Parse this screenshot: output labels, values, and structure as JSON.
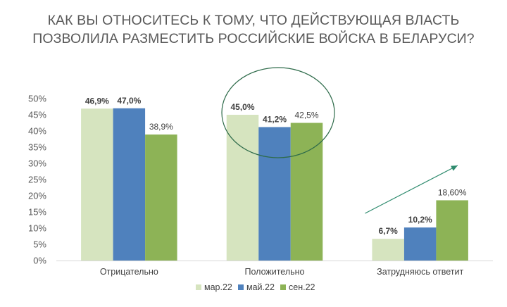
{
  "chart_data": {
    "type": "bar",
    "title_lines": [
      "КАК ВЫ ОТНОСИТЕСЬ К ТОМУ, ЧТО ДЕЙСТВУЮЩАЯ ВЛАСТЬ",
      "ПОЗВОЛИЛА РАЗМЕСТИТЬ РОССИЙСКИЕ ВОЙСКА В БЕЛАРУСИ?"
    ],
    "categories": [
      "Отрицательно",
      "Положительно",
      "Затрудняюсь ответит"
    ],
    "series": [
      {
        "name": "мар.22",
        "color": "#d6e4bf",
        "values": [
          46.9,
          45.0,
          6.7
        ],
        "labels": [
          "46,9%",
          "45,0%",
          "6,7%"
        ],
        "bold_labels": true
      },
      {
        "name": "май.22",
        "color": "#4f81bd",
        "values": [
          47.0,
          41.2,
          10.2
        ],
        "labels": [
          "47,0%",
          "41,2%",
          "10,2%"
        ],
        "bold_labels": true
      },
      {
        "name": "сен.22",
        "color": "#8db356",
        "values": [
          38.9,
          42.5,
          18.6
        ],
        "labels": [
          "38,9%",
          "42,5%",
          "18,60%"
        ],
        "bold_labels": false
      }
    ],
    "y_ticks": [
      "0%",
      "5%",
      "10%",
      "15%",
      "20%",
      "25%",
      "30%",
      "35%",
      "40%",
      "45%",
      "50%"
    ],
    "ylim": [
      0,
      50
    ],
    "grid": false,
    "legend_position": "bottom",
    "annotations": [
      {
        "type": "ellipse",
        "around": "Положительно",
        "color": "#2e6b4a"
      },
      {
        "type": "arrow",
        "near": "Затрудняюсь ответит",
        "direction": "up-right",
        "color": "#2e8b6e"
      }
    ]
  }
}
